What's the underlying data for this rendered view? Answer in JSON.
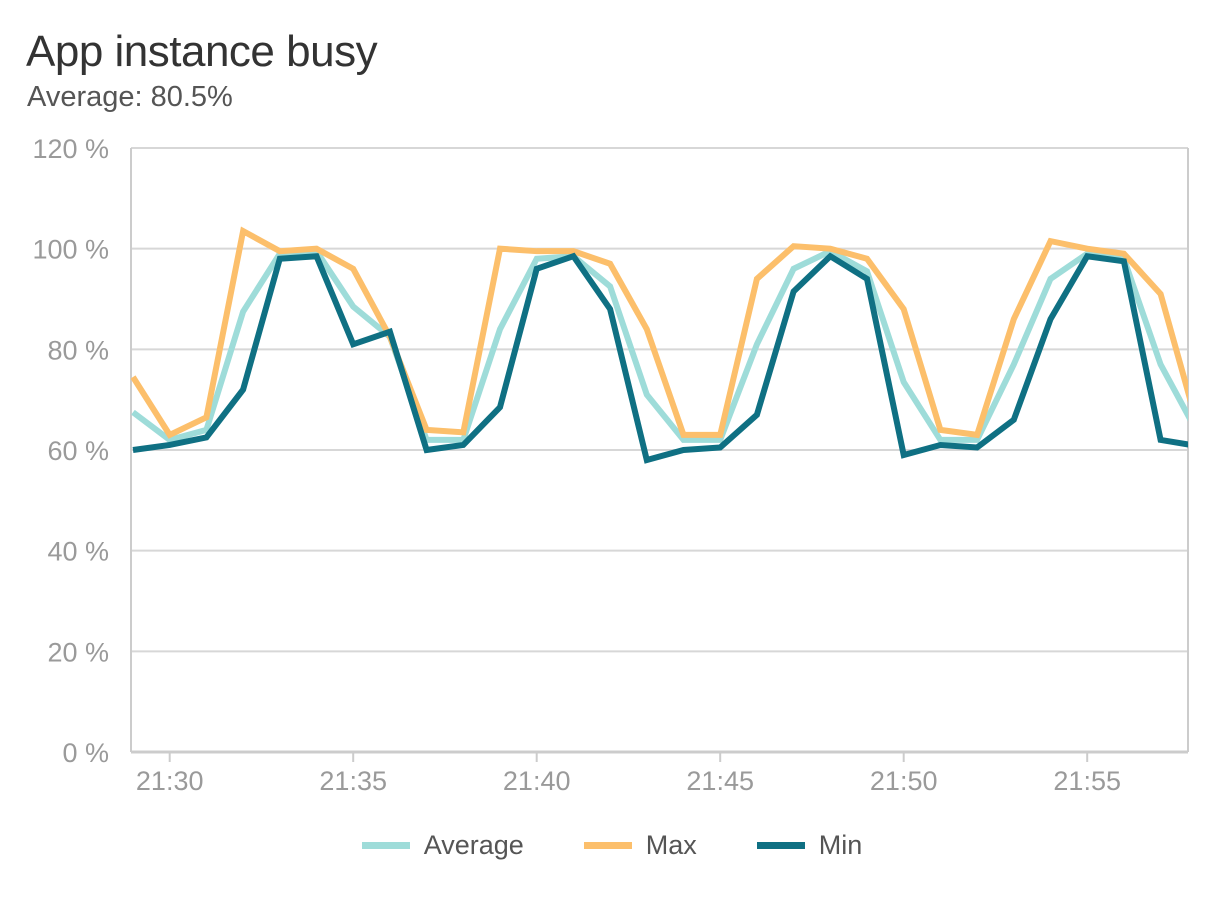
{
  "header": {
    "title": "App instance busy",
    "subtitle": "Average: 80.5%"
  },
  "colors": {
    "grid": "#d7d7d7",
    "axis": "#cccccc",
    "tick_text": "#9a9a9a"
  },
  "chart_data": {
    "type": "line",
    "title": "App instance busy",
    "subtitle": "Average: 80.5%",
    "xlabel": "",
    "ylabel": "",
    "x": [
      "21:29",
      "21:30",
      "21:31",
      "21:32",
      "21:33",
      "21:34",
      "21:35",
      "21:36",
      "21:37",
      "21:38",
      "21:39",
      "21:40",
      "21:41",
      "21:42",
      "21:43",
      "21:44",
      "21:45",
      "21:46",
      "21:47",
      "21:48",
      "21:49",
      "21:50",
      "21:51",
      "21:52",
      "21:53",
      "21:54",
      "21:55",
      "21:56",
      "21:57",
      "21:58",
      "21:59"
    ],
    "x_ticks": [
      "21:30",
      "21:35",
      "21:40",
      "21:45",
      "21:50",
      "21:55"
    ],
    "y_ticks": [
      "0 %",
      "20 %",
      "40 %",
      "60 %",
      "80 %",
      "100 %",
      "120 %"
    ],
    "ylim": [
      0,
      120
    ],
    "grid": true,
    "legend_position": "bottom-center",
    "series": [
      {
        "name": "Average",
        "color": "#9edcd9",
        "values": [
          67.5,
          62,
          64,
          87.5,
          99,
          99.5,
          88.5,
          82.5,
          62,
          62,
          84,
          98,
          98.5,
          92.5,
          71,
          62,
          62,
          81,
          96,
          99.5,
          95.5,
          73.5,
          62,
          62,
          77,
          94,
          99,
          98,
          77,
          63.5,
          null
        ]
      },
      {
        "name": "Max",
        "color": "#fcbf6b",
        "values": [
          74.5,
          63,
          66.5,
          103.5,
          99.5,
          100,
          96,
          82.5,
          64,
          63.5,
          100,
          99.5,
          99.5,
          97,
          84,
          63,
          63,
          94,
          100.5,
          100,
          98,
          88,
          64,
          63,
          86,
          101.5,
          100,
          99,
          91,
          65,
          null
        ]
      },
      {
        "name": "Min",
        "color": "#0f7083",
        "values": [
          60,
          61,
          62.5,
          72,
          98,
          98.5,
          81,
          83.5,
          60,
          61,
          68.5,
          96,
          98.5,
          88,
          58,
          60,
          60.5,
          67,
          91.5,
          98.5,
          94,
          59,
          61,
          60.5,
          66,
          86,
          98.5,
          97.5,
          62,
          60.8,
          null
        ]
      }
    ]
  }
}
